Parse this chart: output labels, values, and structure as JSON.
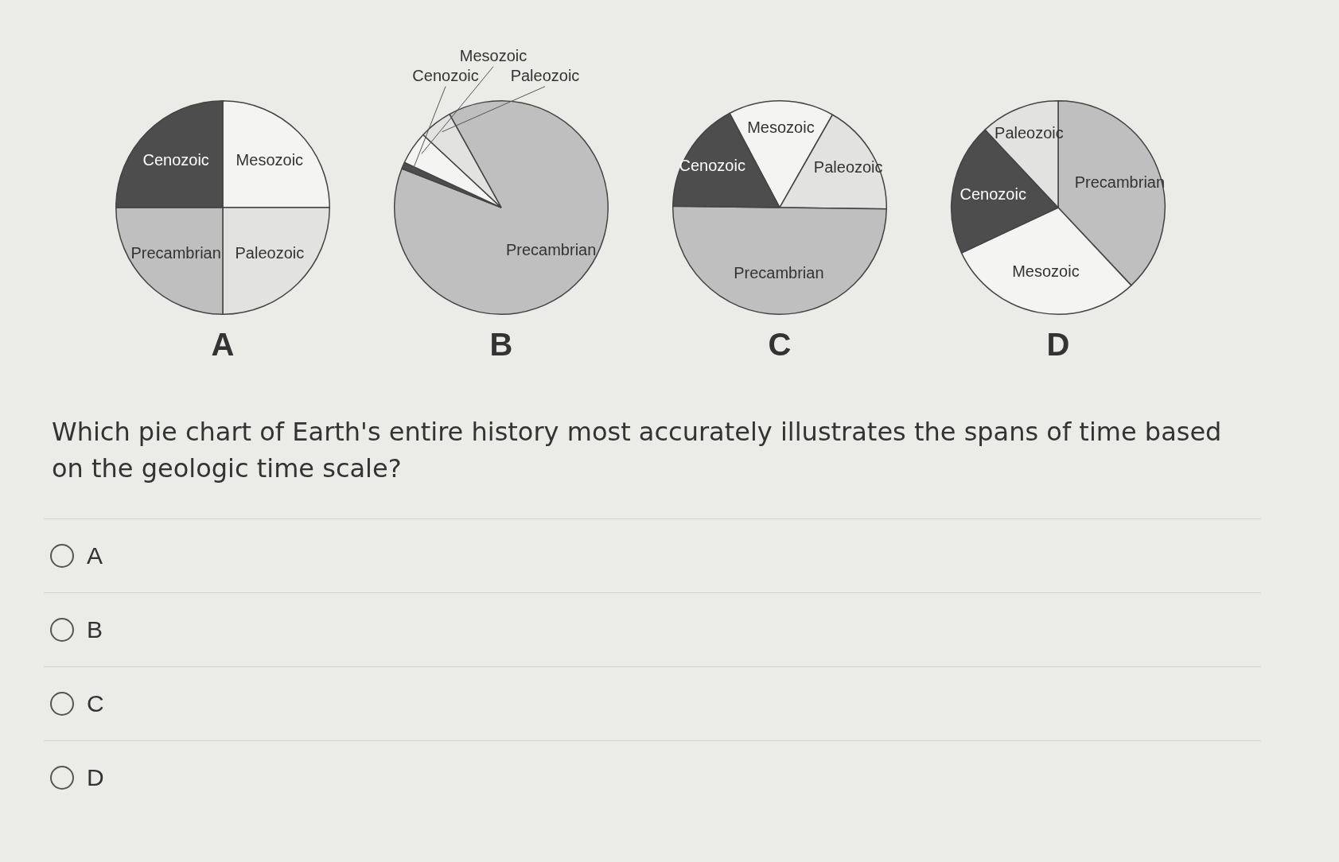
{
  "chart_data": [
    {
      "type": "pie",
      "title": "A",
      "categories": [
        "Mesozoic",
        "Paleozoic",
        "Precambrian",
        "Cenozoic"
      ],
      "values": [
        25,
        25,
        25,
        25
      ],
      "colors": [
        "#f4f4f2",
        "#e2e2e0",
        "#bfbfbf",
        "#4d4d4d"
      ]
    },
    {
      "type": "pie",
      "title": "B",
      "categories": [
        "Precambrian",
        "Cenozoic",
        "Mesozoic",
        "Paleozoic"
      ],
      "values": [
        89,
        1,
        5,
        5
      ],
      "colors": [
        "#bfbfbf",
        "#4d4d4d",
        "#f4f4f2",
        "#e2e2e0"
      ]
    },
    {
      "type": "pie",
      "title": "C",
      "categories": [
        "Mesozoic",
        "Paleozoic",
        "Precambrian",
        "Cenozoic"
      ],
      "values": [
        16,
        17,
        50,
        17
      ],
      "colors": [
        "#f4f4f2",
        "#e2e2e0",
        "#bfbfbf",
        "#4d4d4d"
      ]
    },
    {
      "type": "pie",
      "title": "D",
      "categories": [
        "Precambrian",
        "Mesozoic",
        "Cenozoic",
        "Paleozoic"
      ],
      "values": [
        38,
        30,
        20,
        12
      ],
      "colors": [
        "#bfbfbf",
        "#f4f4f2",
        "#4d4d4d",
        "#e2e2e0"
      ]
    },
    {
      "type": "other",
      "annotations": [
        "Which pie chart of Earth's entire history most accurately illustrates the spans of time based on the geologic time scale?",
        "A",
        "B",
        "C",
        "D"
      ]
    }
  ]
}
